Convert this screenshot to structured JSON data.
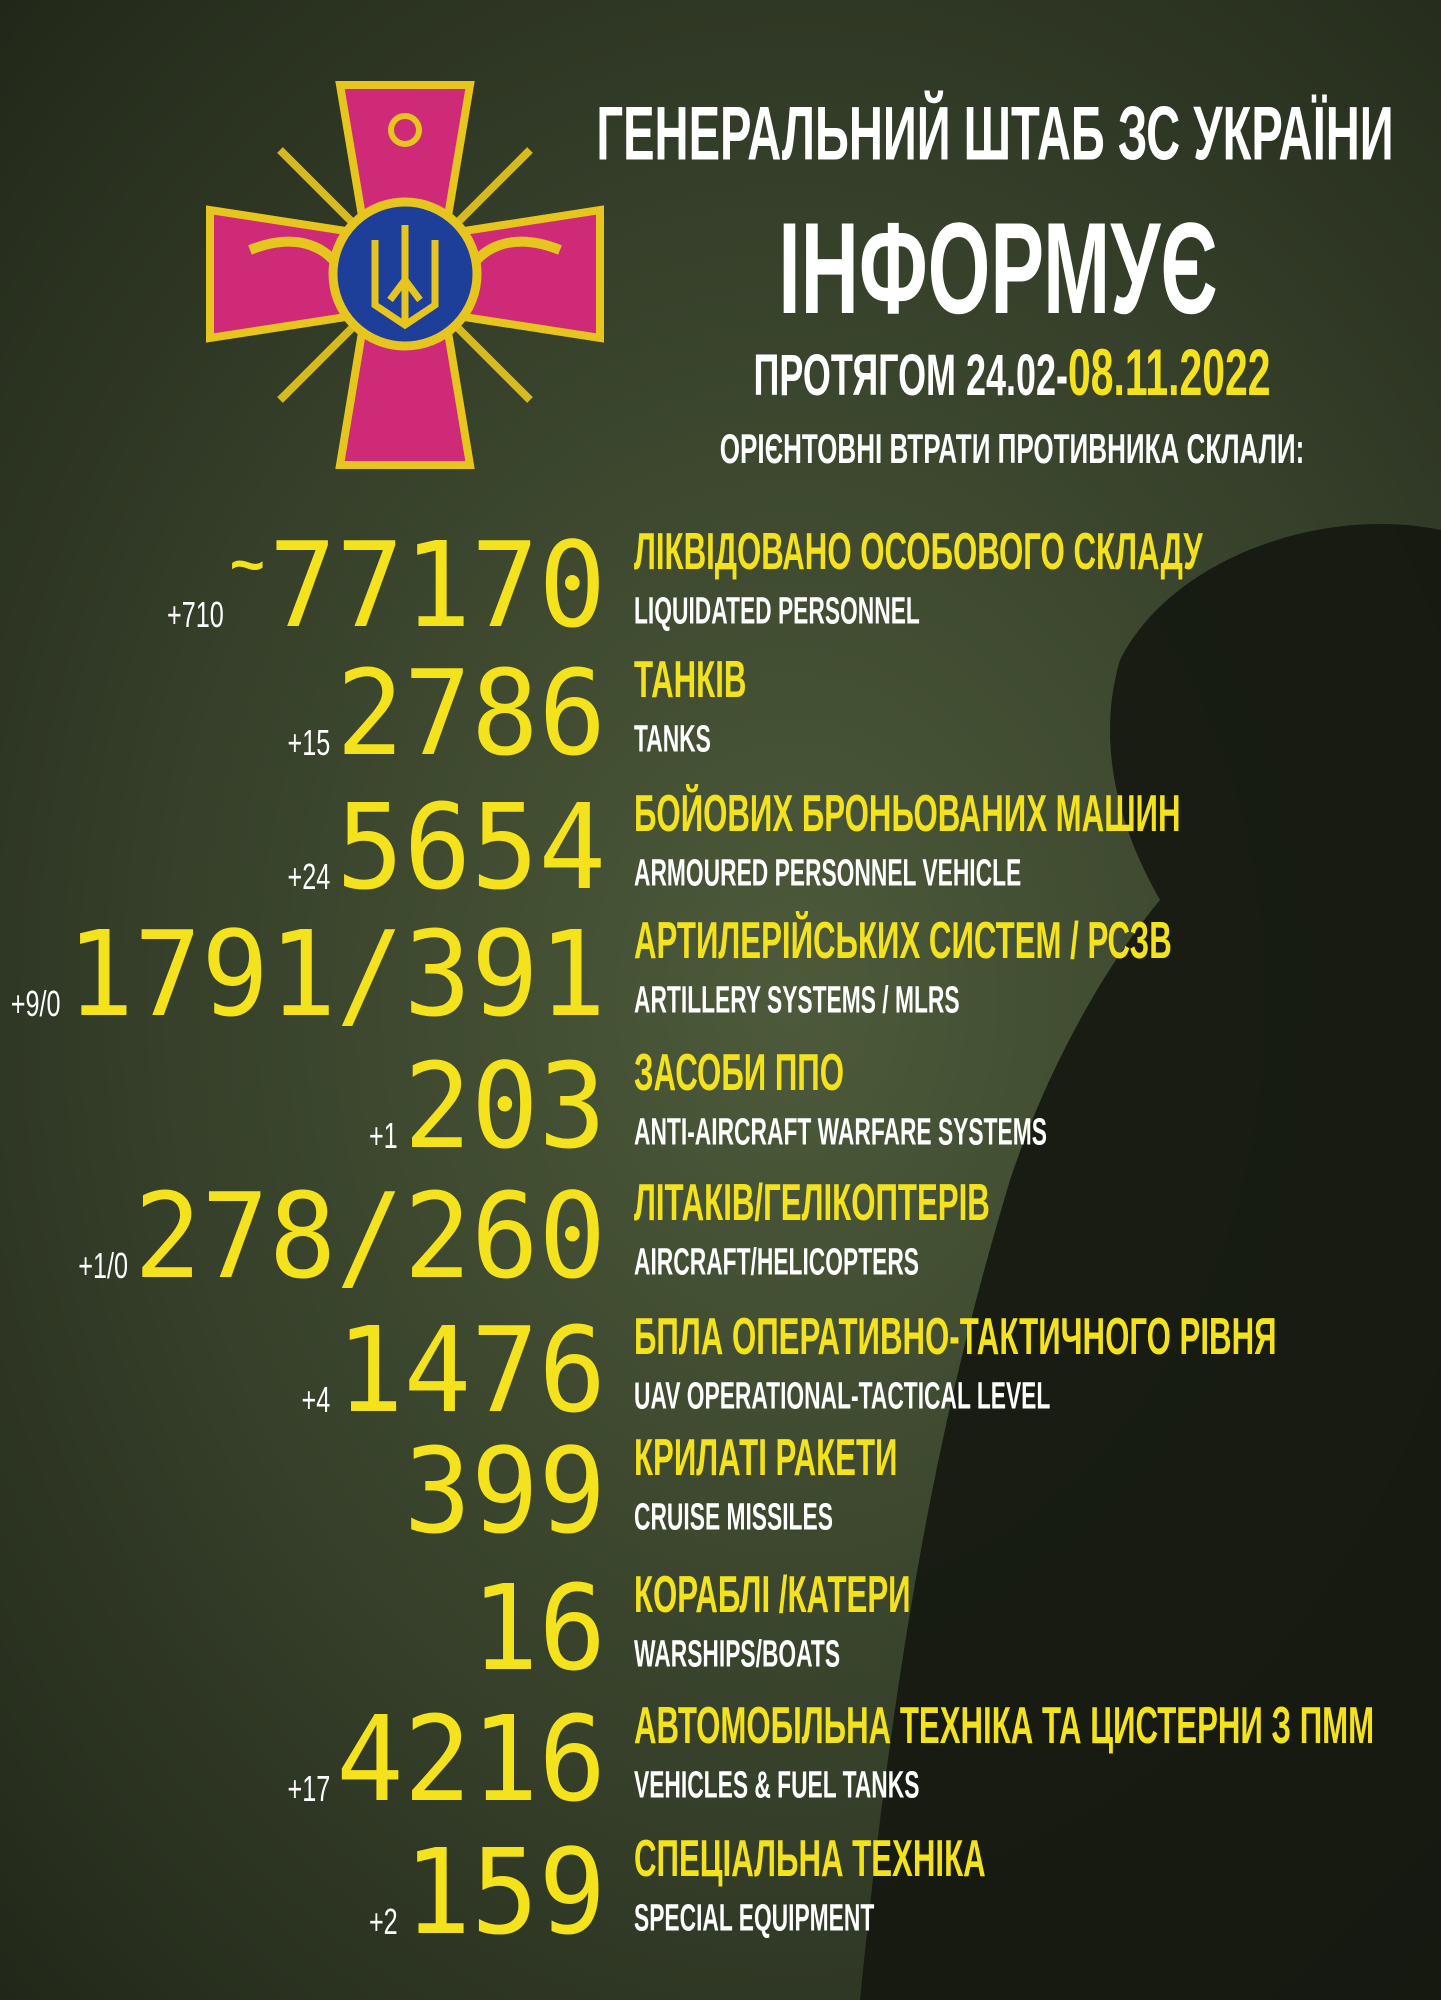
{
  "header": {
    "title": "ГЕНЕРАЛЬНИЙ ШТАБ ЗС УКРАЇНИ",
    "subtitle": "ІНФОРМУЄ",
    "period_prefix": "ПРОТЯГОМ 24.02-",
    "period_date": "08.11.2022",
    "intro": "ОРІЄНТОВНІ ВТРАТИ ПРОТИВНИКА СКЛАЛИ:"
  },
  "items": [
    {
      "prefix": "~",
      "value": "77170",
      "delta": "+710",
      "label_ua": "ЛІКВІДОВАНО ОСОБОВОГО СКЛАДУ",
      "label_en": "LIQUIDATED PERSONNEL"
    },
    {
      "value": "2786",
      "delta": "+15",
      "label_ua": "ТАНКІВ",
      "label_en": "TANKS"
    },
    {
      "value": "5654",
      "delta": "+24",
      "label_ua": "БОЙОВИХ БРОНЬОВАНИХ МАШИН",
      "label_en": "ARMOURED PERSONNEL VEHICLE"
    },
    {
      "value": "1791/391",
      "delta": "+9/0",
      "label_ua": "АРТИЛЕРІЙСЬКИХ СИСТЕМ / РСЗВ",
      "label_en": "ARTILLERY SYSTEMS / MLRS"
    },
    {
      "value": "203",
      "delta": "+1",
      "label_ua": "ЗАСОБИ ППО",
      "label_en": "ANTI-AIRCRAFT WARFARE SYSTEMS"
    },
    {
      "value": "278/260",
      "delta": "+1/0",
      "label_ua": "ЛІТАКІВ/ГЕЛІКОПТЕРІВ",
      "label_en": "AIRCRAFT/HELICOPTERS"
    },
    {
      "value": "1476",
      "delta": "+4",
      "label_ua": "БПЛА ОПЕРАТИВНО-ТАКТИЧНОГО РІВНЯ",
      "label_en": "UAV OPERATIONAL-TACTICAL LEVEL"
    },
    {
      "value": "399",
      "label_ua": "КРИЛАТІ РАКЕТИ",
      "label_en": "CRUISE MISSILES"
    },
    {
      "value": "16",
      "label_ua": "КОРАБЛІ /КАТЕРИ",
      "label_en": "WARSHIPS/BOATS"
    },
    {
      "value": "4216",
      "delta": "+17",
      "label_ua": "АВТОМОБІЛЬНА ТЕХНІКА ТА ЦИСТЕРНИ З ПММ",
      "label_en": "VEHICLES  & FUEL TANKS"
    },
    {
      "value": "159",
      "delta": "+2",
      "label_ua": "СПЕЦІАЛЬНА ТЕХНІКА",
      "label_en": "SPECIAL EQUIPMENT"
    }
  ]
}
